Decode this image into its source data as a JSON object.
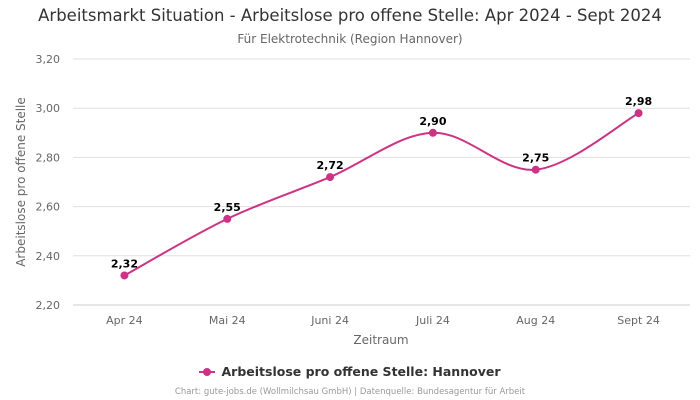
{
  "chart_data": {
    "type": "line",
    "title": "Arbeitsmarkt Situation - Arbeitslose pro offene Stelle: Apr 2024 - Sept 2024",
    "subtitle": "Für Elektrotechnik (Region Hannover)",
    "xlabel": "Zeitraum",
    "ylabel": "Arbeitslose pro offene Stelle",
    "categories": [
      "Apr 24",
      "Mai 24",
      "Juni 24",
      "Juli 24",
      "Aug 24",
      "Sept 24"
    ],
    "series": [
      {
        "name": "Arbeitslose pro offene Stelle: Hannover",
        "values": [
          2.32,
          2.55,
          2.72,
          2.9,
          2.75,
          2.98
        ],
        "labels": [
          "2,32",
          "2,55",
          "2,72",
          "2,90",
          "2,75",
          "2,98"
        ],
        "color": "#cc3384"
      }
    ],
    "ylim": [
      2.2,
      3.2
    ],
    "yticks": [
      2.2,
      2.4,
      2.6,
      2.8,
      3.0,
      3.2
    ],
    "ytick_labels": [
      "2,20",
      "2,40",
      "2,60",
      "2,80",
      "3,00",
      "3,20"
    ],
    "grid": true,
    "legend_position": "bottom-center"
  },
  "credits": "Chart: gute-jobs.de (Wollmilchsau GmbH) | Datenquelle: Bundesagentur für Arbeit",
  "colors": {
    "series": "#cc3384",
    "grid": "#e0e0e0",
    "axis_text": "#666666"
  }
}
